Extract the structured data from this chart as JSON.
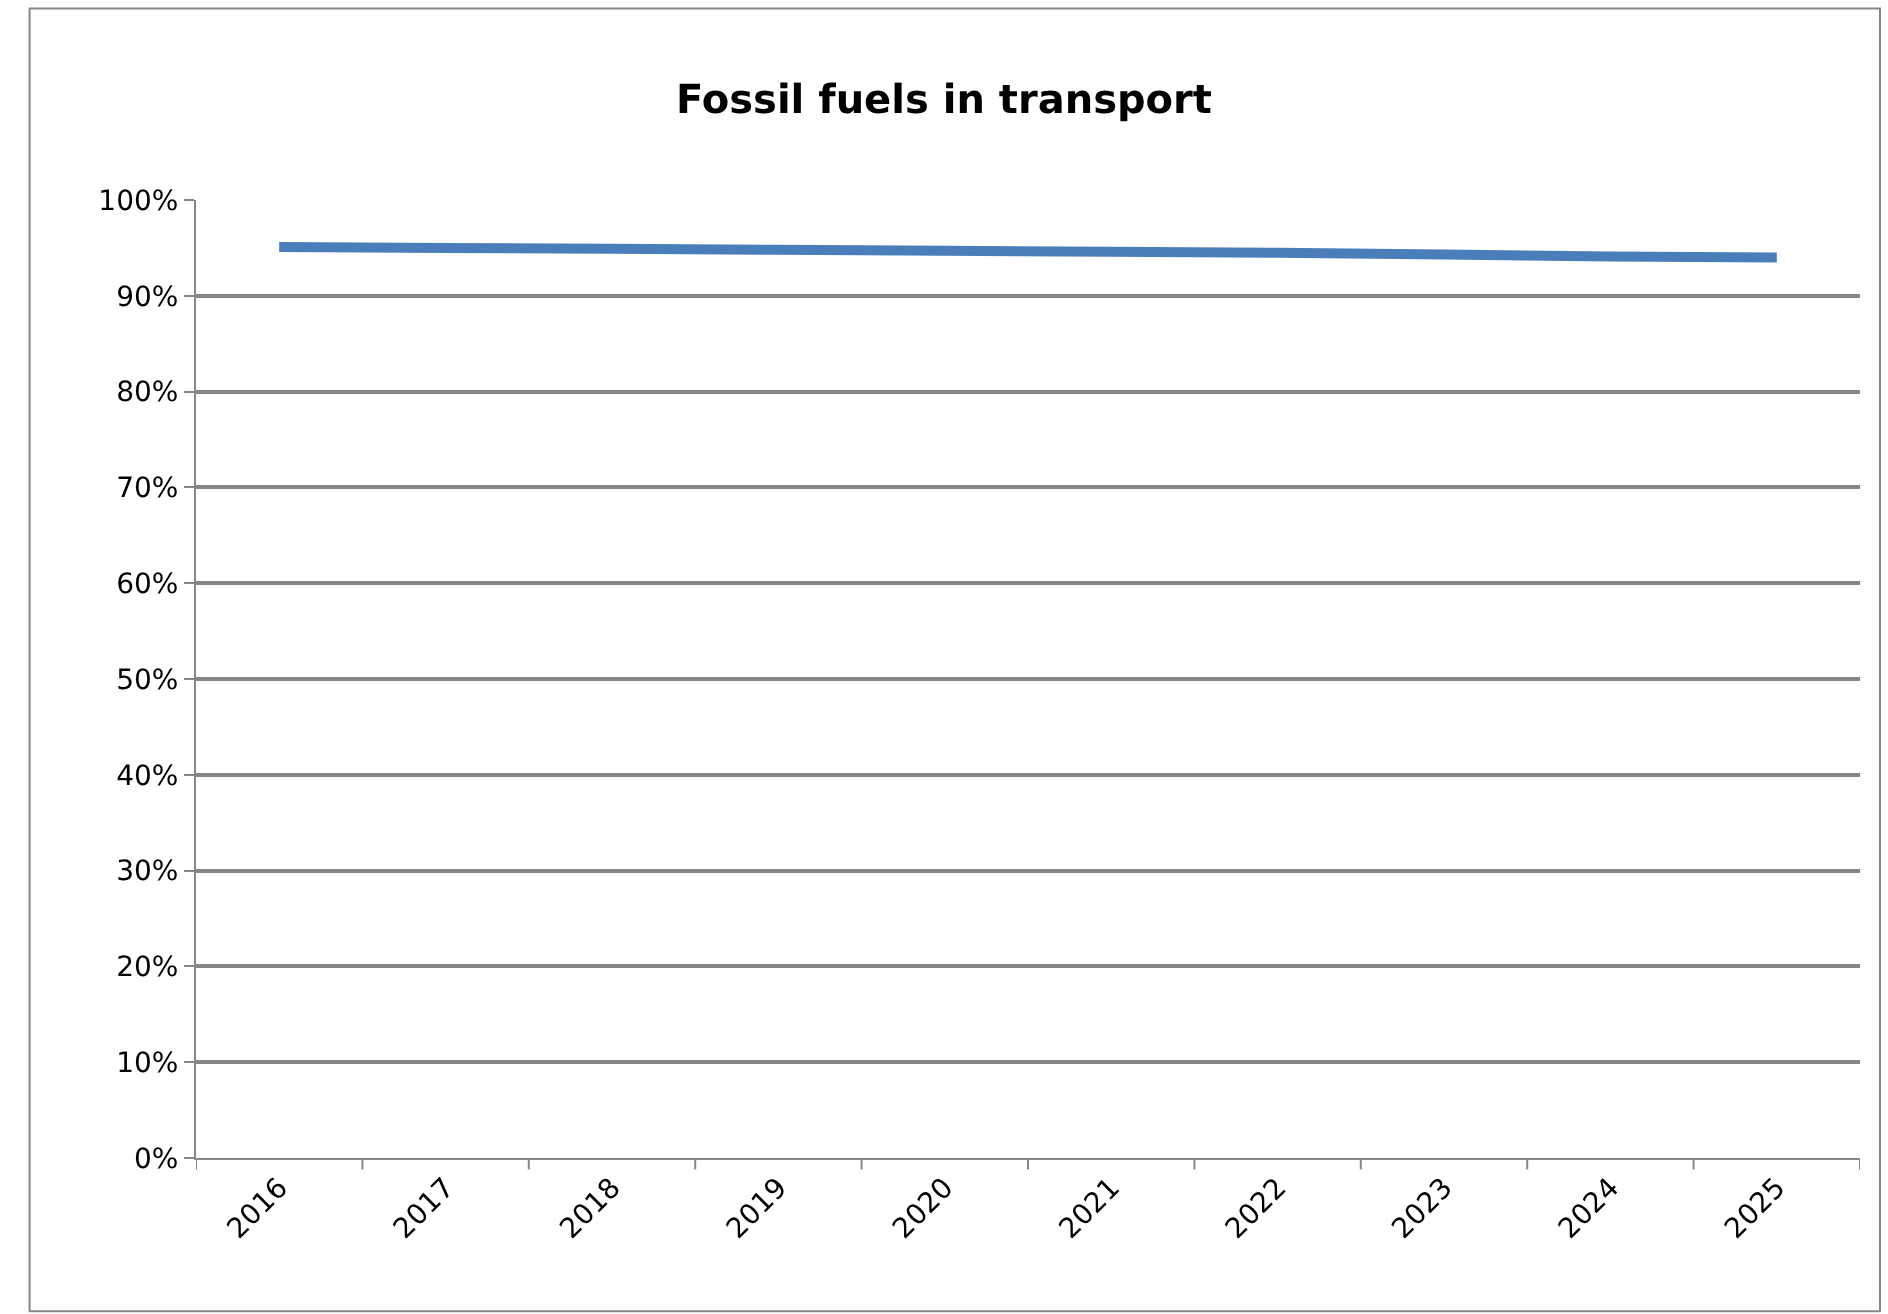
{
  "chart_data": {
    "type": "line",
    "title": "Fossil fuels in transport",
    "categories": [
      "2016",
      "2017",
      "2018",
      "2019",
      "2020",
      "2021",
      "2022",
      "2023",
      "2024",
      "2025"
    ],
    "series": [
      {
        "color": "#4a7ebb",
        "values": [
          95.1,
          95.0,
          94.9,
          94.8,
          94.7,
          94.6,
          94.5,
          94.3,
          94.1,
          94.0
        ]
      }
    ],
    "ylim": [
      0,
      100
    ],
    "yticks": [
      {
        "value": 0,
        "label": "0%"
      },
      {
        "value": 10,
        "label": "10%"
      },
      {
        "value": 20,
        "label": "20%"
      },
      {
        "value": 30,
        "label": "30%"
      },
      {
        "value": 40,
        "label": "40%"
      },
      {
        "value": 50,
        "label": "50%"
      },
      {
        "value": 60,
        "label": "60%"
      },
      {
        "value": 70,
        "label": "70%"
      },
      {
        "value": 80,
        "label": "80%"
      },
      {
        "value": 90,
        "label": "90%"
      },
      {
        "value": 100,
        "label": "100%"
      }
    ],
    "grid": "y",
    "marker": "none",
    "line_style": "solid"
  }
}
